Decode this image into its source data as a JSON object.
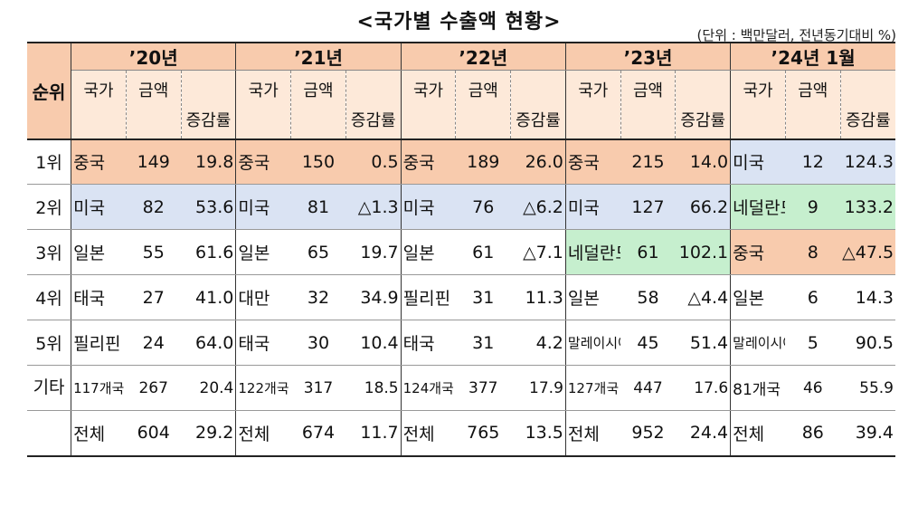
{
  "title": "<국가별 수출액 현황>",
  "unit_note": "(단위 : 백만달러, 전년동기대비 %)",
  "header": {
    "rank_label": "순위",
    "years": [
      "’20년",
      "’21년",
      "’22년",
      "’23년",
      "’24년 1월"
    ],
    "sub": {
      "country": "국가",
      "amount": "금액",
      "change": "증감률"
    }
  },
  "rows": [
    {
      "rank": "1위",
      "cells": [
        {
          "country": "중국",
          "amount": "149",
          "change": "19.8",
          "color": "#f8cbad"
        },
        {
          "country": "중국",
          "amount": "150",
          "change": "0.5",
          "color": "#f8cbad"
        },
        {
          "country": "중국",
          "amount": "189",
          "change": "26.0",
          "color": "#f8cbad"
        },
        {
          "country": "중국",
          "amount": "215",
          "change": "14.0",
          "color": "#f8cbad"
        },
        {
          "country": "미국",
          "amount": "12",
          "change": "124.3",
          "color": "#dae3f3"
        }
      ]
    },
    {
      "rank": "2위",
      "cells": [
        {
          "country": "미국",
          "amount": "82",
          "change": "53.6",
          "color": "#dae3f3"
        },
        {
          "country": "미국",
          "amount": "81",
          "change": "△1.3",
          "color": "#dae3f3"
        },
        {
          "country": "미국",
          "amount": "76",
          "change": "△6.2",
          "color": "#dae3f3"
        },
        {
          "country": "미국",
          "amount": "127",
          "change": "66.2",
          "color": "#dae3f3"
        },
        {
          "country": "네덜란드",
          "amount": "9",
          "change": "133.2",
          "color": "#c6efce"
        }
      ]
    },
    {
      "rank": "3위",
      "cells": [
        {
          "country": "일본",
          "amount": "55",
          "change": "61.6",
          "color": "#ffffff"
        },
        {
          "country": "일본",
          "amount": "65",
          "change": "19.7",
          "color": "#ffffff"
        },
        {
          "country": "일본",
          "amount": "61",
          "change": "△7.1",
          "color": "#ffffff"
        },
        {
          "country": "네덜란드",
          "amount": "61",
          "change": "102.1",
          "color": "#c6efce"
        },
        {
          "country": "중국",
          "amount": "8",
          "change": "△47.5",
          "color": "#f8cbad"
        }
      ]
    },
    {
      "rank": "4위",
      "cells": [
        {
          "country": "태국",
          "amount": "27",
          "change": "41.0",
          "color": "#ffffff"
        },
        {
          "country": "대만",
          "amount": "32",
          "change": "34.9",
          "color": "#ffffff"
        },
        {
          "country": "필리핀",
          "amount": "31",
          "change": "11.3",
          "color": "#ffffff"
        },
        {
          "country": "일본",
          "amount": "58",
          "change": "△4.4",
          "color": "#ffffff"
        },
        {
          "country": "일본",
          "amount": "6",
          "change": "14.3",
          "color": "#ffffff"
        }
      ]
    },
    {
      "rank": "5위",
      "cells": [
        {
          "country": "필리핀",
          "amount": "24",
          "change": "64.0",
          "color": "#ffffff"
        },
        {
          "country": "태국",
          "amount": "30",
          "change": "10.4",
          "color": "#ffffff"
        },
        {
          "country": "태국",
          "amount": "31",
          "change": "4.2",
          "color": "#ffffff"
        },
        {
          "country": "말레이시아",
          "amount": "45",
          "change": "51.4",
          "color": "#ffffff"
        },
        {
          "country": "말레이시아",
          "amount": "5",
          "change": "90.5",
          "color": "#ffffff"
        }
      ]
    },
    {
      "rank": "기타",
      "cells": [
        {
          "country": "117개국",
          "amount": "267",
          "change": "20.4",
          "color": "#ffffff"
        },
        {
          "country": "122개국",
          "amount": "317",
          "change": "18.5",
          "color": "#ffffff"
        },
        {
          "country": "124개국",
          "amount": "377",
          "change": "17.9",
          "color": "#ffffff"
        },
        {
          "country": "127개국",
          "amount": "447",
          "change": "17.6",
          "color": "#ffffff"
        },
        {
          "country": "81개국",
          "amount": "46",
          "change": "55.9",
          "color": "#ffffff"
        }
      ]
    },
    {
      "rank": "",
      "cells": [
        {
          "country": "전체",
          "amount": "604",
          "change": "29.2",
          "color": "#ffffff"
        },
        {
          "country": "전체",
          "amount": "674",
          "change": "11.7",
          "color": "#ffffff"
        },
        {
          "country": "전체",
          "amount": "765",
          "change": "13.5",
          "color": "#ffffff"
        },
        {
          "country": "전체",
          "amount": "952",
          "change": "24.4",
          "color": "#ffffff"
        },
        {
          "country": "전체",
          "amount": "86",
          "change": "39.4",
          "color": "#ffffff"
        }
      ]
    }
  ]
}
